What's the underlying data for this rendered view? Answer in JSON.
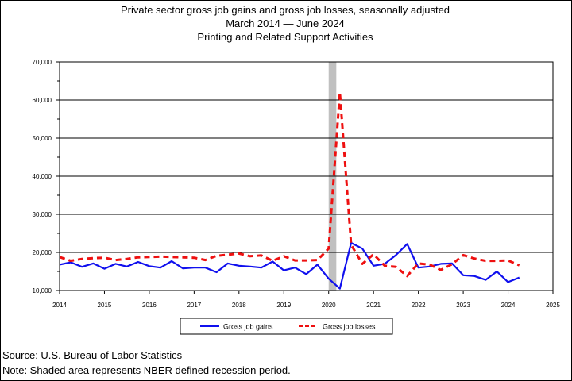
{
  "title_lines": [
    "Private sector gross job gains and gross job losses, seasonally adjusted",
    "March 2014  — June 2024",
    "Printing and Related Support Activities"
  ],
  "footer": {
    "source": "Source: U.S. Bureau of Labor Statistics",
    "note": "Note: Shaded area represents NBER defined recession period."
  },
  "chart_data": {
    "type": "line",
    "title": "Private sector gross job gains and gross job losses, seasonally adjusted",
    "subtitle": "Printing and Related Support Activities",
    "xlabel": "",
    "ylabel": "",
    "xlim": [
      2014,
      2025
    ],
    "ylim": [
      10000,
      70000
    ],
    "x_ticks": [
      "2014",
      "2015",
      "2016",
      "2017",
      "2018",
      "2019",
      "2020",
      "2021",
      "2022",
      "2023",
      "2024",
      "2025"
    ],
    "y_ticks": [
      "10,000",
      "20,000",
      "30,000",
      "40,000",
      "50,000",
      "60,000",
      "70,000"
    ],
    "grid": "horizontal",
    "legend_position": "bottom",
    "recession": {
      "start": 2020.0,
      "end": 2020.17,
      "color": "#c0c0c0"
    },
    "series": [
      {
        "name": "Gross job gains",
        "color": "#1010ee",
        "style": "solid",
        "x": [
          2014.0,
          2014.25,
          2014.5,
          2014.75,
          2015.0,
          2015.25,
          2015.5,
          2015.75,
          2016.0,
          2016.25,
          2016.5,
          2016.75,
          2017.0,
          2017.25,
          2017.5,
          2017.75,
          2018.0,
          2018.25,
          2018.5,
          2018.75,
          2019.0,
          2019.25,
          2019.5,
          2019.75,
          2020.0,
          2020.25,
          2020.5,
          2020.75,
          2021.0,
          2021.25,
          2021.5,
          2021.75,
          2022.0,
          2022.25,
          2022.5,
          2022.75,
          2023.0,
          2023.25,
          2023.5,
          2023.75,
          2024.0,
          2024.25
        ],
        "values": [
          16800,
          17400,
          16200,
          17100,
          15700,
          17000,
          16300,
          17500,
          16400,
          16000,
          17700,
          15800,
          16000,
          16000,
          14800,
          17100,
          16500,
          16300,
          16000,
          17600,
          15300,
          16000,
          14300,
          16800,
          13100,
          10500,
          22500,
          21000,
          16500,
          17000,
          19300,
          22200,
          16000,
          16300,
          17000,
          17100,
          14000,
          13800,
          12800,
          15000,
          12200,
          13400
        ]
      },
      {
        "name": "Gross job losses",
        "color": "#ee1010",
        "style": "dashed",
        "x": [
          2014.0,
          2014.25,
          2014.5,
          2014.75,
          2015.0,
          2015.25,
          2015.5,
          2015.75,
          2016.0,
          2016.25,
          2016.5,
          2016.75,
          2017.0,
          2017.25,
          2017.5,
          2017.75,
          2018.0,
          2018.25,
          2018.5,
          2018.75,
          2019.0,
          2019.25,
          2019.5,
          2019.75,
          2020.0,
          2020.25,
          2020.5,
          2020.75,
          2021.0,
          2021.25,
          2021.5,
          2021.75,
          2022.0,
          2022.25,
          2022.5,
          2022.75,
          2023.0,
          2023.25,
          2023.5,
          2023.75,
          2024.0,
          2024.25
        ],
        "values": [
          18800,
          17800,
          18300,
          18500,
          18600,
          18000,
          18300,
          18700,
          18800,
          18900,
          18800,
          18700,
          18600,
          18000,
          19100,
          19400,
          19700,
          19000,
          19200,
          17800,
          19000,
          17900,
          17900,
          18000,
          21000,
          62000,
          22000,
          17000,
          19500,
          16500,
          16200,
          13800,
          17100,
          16800,
          15400,
          16900,
          19300,
          18400,
          17800,
          17800,
          17900,
          16600
        ]
      }
    ]
  }
}
